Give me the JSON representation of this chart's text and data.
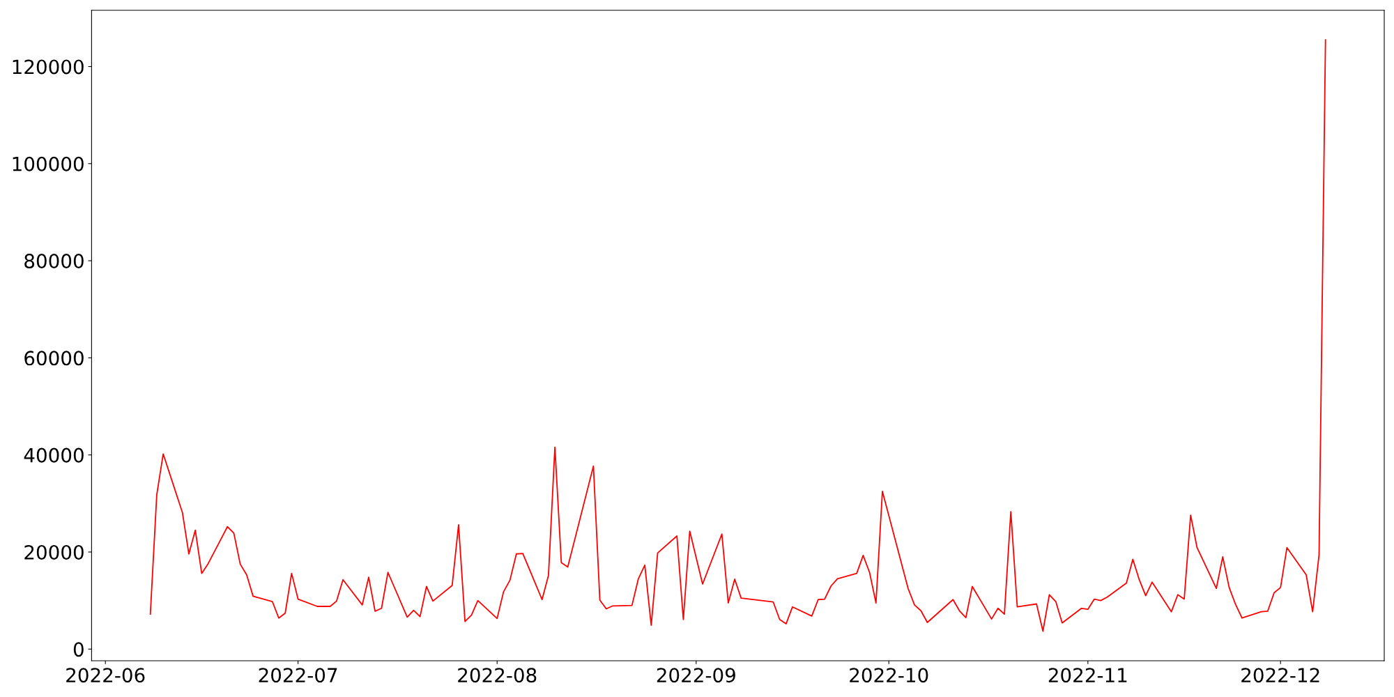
{
  "chart_data": {
    "type": "line",
    "x": [
      "2022-06-08",
      "2022-06-09",
      "2022-06-10",
      "2022-06-13",
      "2022-06-14",
      "2022-06-15",
      "2022-06-16",
      "2022-06-17",
      "2022-06-20",
      "2022-06-21",
      "2022-06-22",
      "2022-06-23",
      "2022-06-24",
      "2022-06-27",
      "2022-06-28",
      "2022-06-29",
      "2022-06-30",
      "2022-07-01",
      "2022-07-04",
      "2022-07-06",
      "2022-07-07",
      "2022-07-08",
      "2022-07-11",
      "2022-07-12",
      "2022-07-13",
      "2022-07-14",
      "2022-07-15",
      "2022-07-18",
      "2022-07-19",
      "2022-07-20",
      "2022-07-21",
      "2022-07-22",
      "2022-07-25",
      "2022-07-26",
      "2022-07-27",
      "2022-07-28",
      "2022-07-29",
      "2022-08-01",
      "2022-08-02",
      "2022-08-03",
      "2022-08-04",
      "2022-08-05",
      "2022-08-08",
      "2022-08-09",
      "2022-08-10",
      "2022-08-11",
      "2022-08-12",
      "2022-08-16",
      "2022-08-17",
      "2022-08-18",
      "2022-08-19",
      "2022-08-22",
      "2022-08-23",
      "2022-08-24",
      "2022-08-25",
      "2022-08-26",
      "2022-08-29",
      "2022-08-30",
      "2022-08-31",
      "2022-09-02",
      "2022-09-05",
      "2022-09-06",
      "2022-09-07",
      "2022-09-08",
      "2022-09-13",
      "2022-09-14",
      "2022-09-15",
      "2022-09-16",
      "2022-09-19",
      "2022-09-20",
      "2022-09-21",
      "2022-09-22",
      "2022-09-23",
      "2022-09-26",
      "2022-09-27",
      "2022-09-28",
      "2022-09-29",
      "2022-09-30",
      "2022-10-04",
      "2022-10-05",
      "2022-10-06",
      "2022-10-07",
      "2022-10-11",
      "2022-10-12",
      "2022-10-13",
      "2022-10-14",
      "2022-10-17",
      "2022-10-18",
      "2022-10-19",
      "2022-10-20",
      "2022-10-21",
      "2022-10-24",
      "2022-10-25",
      "2022-10-26",
      "2022-10-27",
      "2022-10-28",
      "2022-10-31",
      "2022-11-01",
      "2022-11-02",
      "2022-11-03",
      "2022-11-04",
      "2022-11-07",
      "2022-11-08",
      "2022-11-09",
      "2022-11-10",
      "2022-11-11",
      "2022-11-14",
      "2022-11-15",
      "2022-11-16",
      "2022-11-17",
      "2022-11-18",
      "2022-11-21",
      "2022-11-22",
      "2022-11-23",
      "2022-11-24",
      "2022-11-25",
      "2022-11-28",
      "2022-11-29",
      "2022-11-30",
      "2022-12-01",
      "2022-12-02",
      "2022-12-05",
      "2022-12-06",
      "2022-12-07",
      "2022-12-08"
    ],
    "series": [
      {
        "color": "#ff0000",
        "values": [
          7200,
          31800,
          40200,
          28100,
          19600,
          24500,
          15600,
          17600,
          25200,
          23900,
          17500,
          15300,
          10900,
          9800,
          6400,
          7400,
          15600,
          10300,
          8800,
          8800,
          9900,
          14300,
          9100,
          14800,
          7800,
          8400,
          15800,
          6600,
          8000,
          6700,
          12900,
          9900,
          13100,
          25600,
          5700,
          7000,
          10000,
          6300,
          11800,
          14200,
          19600,
          19700,
          10200,
          15200,
          41600,
          17800,
          16900,
          37700,
          10100,
          8300,
          8900,
          9000,
          14500,
          17300,
          4900,
          19800,
          23300,
          6100,
          24300,
          13400,
          23700,
          9500,
          14400,
          10500,
          9700,
          6100,
          5200,
          8700,
          6800,
          10200,
          10300,
          13000,
          14500,
          15600,
          19300,
          15800,
          9500,
          32500,
          12500,
          9100,
          7900,
          5500,
          10200,
          7900,
          6500,
          12900,
          6200,
          8400,
          7200,
          28300,
          8700,
          9300,
          3700,
          11200,
          9800,
          5400,
          8400,
          8200,
          10300,
          10000,
          10700,
          13600,
          18500,
          14300,
          11000,
          13800,
          7700,
          11200,
          10300,
          27600,
          20900,
          12500,
          19000,
          12700,
          9200,
          6400,
          7700,
          7800,
          11600,
          12700,
          20900,
          15300,
          7700,
          19400,
          125500
        ]
      }
    ],
    "xlim": [
      "2022-05-29T20:24",
      "2022-12-17T03:36"
    ],
    "xticks": [
      {
        "value": "2022-06-01",
        "label": "2022-06"
      },
      {
        "value": "2022-07-01",
        "label": "2022-07"
      },
      {
        "value": "2022-08-01",
        "label": "2022-08"
      },
      {
        "value": "2022-09-01",
        "label": "2022-09"
      },
      {
        "value": "2022-10-01",
        "label": "2022-10"
      },
      {
        "value": "2022-11-01",
        "label": "2022-11"
      },
      {
        "value": "2022-12-01",
        "label": "2022-12"
      }
    ],
    "ylim": [
      -2400,
      131600
    ],
    "yticks": [
      0,
      20000,
      40000,
      60000,
      80000,
      100000,
      120000
    ],
    "grid": false,
    "marker": "none",
    "line_style": "solid"
  }
}
